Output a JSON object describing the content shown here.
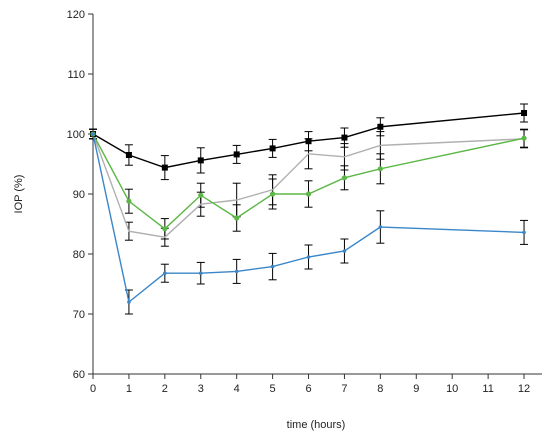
{
  "chart_data": {
    "type": "line",
    "title": "",
    "xlabel": "time (hours)",
    "ylabel": "IOP (%)",
    "x": [
      0,
      1,
      2,
      3,
      4,
      5,
      6,
      7,
      8,
      12
    ],
    "x_ticks": [
      0,
      1,
      2,
      3,
      4,
      5,
      6,
      7,
      8,
      9,
      10,
      11,
      12
    ],
    "y_ticks": [
      60,
      70,
      80,
      90,
      100,
      110,
      120
    ],
    "xlim": [
      0,
      12.5
    ],
    "ylim": [
      60,
      120
    ],
    "grid": false,
    "legend": "none",
    "series": [
      {
        "color": "#000000",
        "marker": "square",
        "values": [
          100,
          96.5,
          94.4,
          95.6,
          96.6,
          97.6,
          98.8,
          99.4,
          101.2,
          103.5
        ],
        "errors": [
          0.8,
          1.7,
          2.0,
          2.1,
          1.5,
          1.5,
          1.6,
          1.6,
          1.5,
          1.5
        ]
      },
      {
        "color": "#b0b0b0",
        "marker": "none",
        "values": [
          100,
          83.8,
          82.8,
          88.3,
          89.0,
          90.7,
          96.7,
          96.2,
          98.1,
          99.2
        ],
        "errors": [
          0.8,
          1.5,
          1.5,
          2.0,
          2.8,
          2.5,
          2.5,
          2.2,
          2.3,
          1.5
        ]
      },
      {
        "color": "#5cb746",
        "marker": "circle",
        "values": [
          100,
          88.8,
          84.2,
          89.8,
          86.0,
          90.0,
          90.0,
          92.7,
          94.2,
          99.3
        ],
        "errors": [
          0.8,
          2.0,
          1.7,
          2.0,
          2.2,
          2.5,
          2.2,
          2.0,
          2.5,
          1.5
        ]
      },
      {
        "color": "#3a86c8",
        "marker": "dot",
        "values": [
          100,
          72.0,
          76.8,
          76.8,
          77.1,
          77.9,
          79.5,
          80.5,
          84.5,
          83.6
        ],
        "errors": [
          0.8,
          2.0,
          1.5,
          1.8,
          2.0,
          2.2,
          2.0,
          2.0,
          2.7,
          2.0
        ]
      }
    ]
  }
}
